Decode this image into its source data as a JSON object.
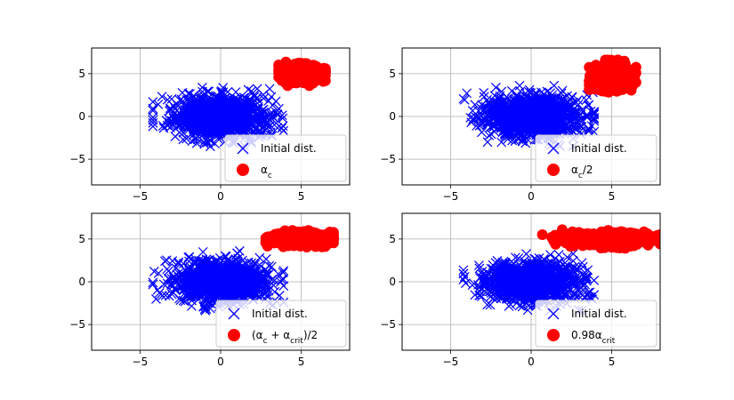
{
  "chart_data": [
    {
      "type": "scatter",
      "xlim": [
        -8,
        8
      ],
      "ylim": [
        -8,
        8
      ],
      "xticks": [
        -5,
        0,
        5
      ],
      "yticks": [
        -5,
        0,
        5
      ],
      "grid": true,
      "legend_placement": "lower-right",
      "series": [
        {
          "name": "Initial dist.",
          "marker": "x",
          "color": "#0000ff",
          "distribution": {
            "center": [
              0.0,
              0.0
            ],
            "spread": [
              1.5,
              1.2
            ],
            "x_range": [
              -4.2,
              3.9
            ],
            "y_range": [
              -3.5,
              3.6
            ]
          }
        },
        {
          "name": "α_c",
          "marker": "o",
          "color": "#ff0000",
          "distribution": {
            "center": [
              5.0,
              5.0
            ],
            "spread": [
              0.6,
              0.5
            ],
            "x_range": [
              3.6,
              6.5
            ],
            "y_range": [
              3.6,
              6.6
            ]
          }
        }
      ]
    },
    {
      "type": "scatter",
      "xlim": [
        -8,
        8
      ],
      "ylim": [
        -8,
        8
      ],
      "xticks": [
        -5,
        0,
        5
      ],
      "yticks": [
        -5,
        0,
        5
      ],
      "grid": true,
      "legend_placement": "lower-right",
      "series": [
        {
          "name": "Initial dist.",
          "marker": "x",
          "color": "#0000ff",
          "distribution": {
            "center": [
              0.0,
              0.0
            ],
            "spread": [
              1.5,
              1.2
            ],
            "x_range": [
              -4.2,
              3.9
            ],
            "y_range": [
              -3.5,
              3.6
            ]
          }
        },
        {
          "name": "α_c/2",
          "marker": "o",
          "color": "#ff0000",
          "distribution": {
            "center": [
              5.0,
              4.7
            ],
            "spread": [
              0.6,
              0.7
            ],
            "x_range": [
              3.6,
              6.5
            ],
            "y_range": [
              2.7,
              6.6
            ]
          }
        }
      ]
    },
    {
      "type": "scatter",
      "xlim": [
        -8,
        8
      ],
      "ylim": [
        -8,
        8
      ],
      "xticks": [
        -5,
        0,
        5
      ],
      "yticks": [
        -5,
        0,
        5
      ],
      "grid": true,
      "legend_placement": "lower-right",
      "series": [
        {
          "name": "Initial dist.",
          "marker": "x",
          "color": "#0000ff",
          "distribution": {
            "center": [
              0.0,
              0.0
            ],
            "spread": [
              1.5,
              1.2
            ],
            "x_range": [
              -4.2,
              3.9
            ],
            "y_range": [
              -3.5,
              3.6
            ]
          }
        },
        {
          "name": "(α_c + α_crit)/2",
          "marker": "o",
          "color": "#ff0000",
          "distribution": {
            "center": [
              5.0,
              5.0
            ],
            "spread": [
              0.9,
              0.35
            ],
            "x_range": [
              2.8,
              7.0
            ],
            "y_range": [
              3.9,
              6.0
            ]
          }
        }
      ]
    },
    {
      "type": "scatter",
      "xlim": [
        -8,
        8
      ],
      "ylim": [
        -8,
        8
      ],
      "xticks": [
        -5,
        0,
        5
      ],
      "yticks": [
        -5,
        0,
        5
      ],
      "grid": true,
      "legend_placement": "lower-right",
      "series": [
        {
          "name": "Initial dist.",
          "marker": "x",
          "color": "#0000ff",
          "distribution": {
            "center": [
              0.0,
              0.0
            ],
            "spread": [
              1.5,
              1.2
            ],
            "x_range": [
              -4.2,
              3.9
            ],
            "y_range": [
              -3.5,
              3.6
            ]
          }
        },
        {
          "name": "0.98α_crit",
          "marker": "o",
          "color": "#ff0000",
          "distribution": {
            "center": [
              5.0,
              5.0
            ],
            "spread": [
              1.6,
              0.35
            ],
            "x_range": [
              0.5,
              8.0
            ],
            "y_range": [
              3.7,
              6.2
            ]
          }
        }
      ]
    }
  ]
}
